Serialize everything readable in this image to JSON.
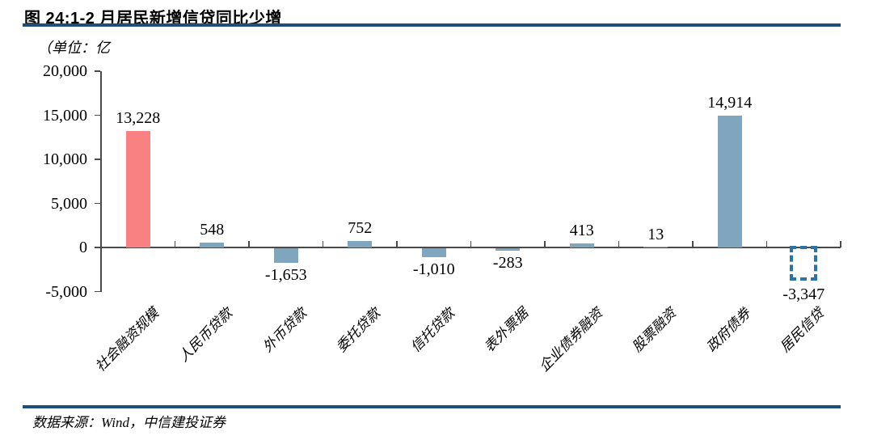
{
  "header": {
    "title": "图 24:1-2 月居民新增信贷同比少增"
  },
  "chart_data": {
    "type": "bar",
    "title": "图 24:1-2 月居民新增信贷同比少增",
    "unit_label": "（单位：亿",
    "categories": [
      "社会融资规模",
      "人民币贷款",
      "外币贷款",
      "委托贷款",
      "信托贷款",
      "表外票据",
      "企业债券融资",
      "股票融资",
      "政府债券",
      "居民信贷"
    ],
    "values": [
      13228,
      548,
      -1653,
      752,
      -1010,
      -283,
      413,
      13,
      14914,
      -3347
    ],
    "value_labels": [
      "13,228",
      "548",
      "-1,653",
      "752",
      "-1,010",
      "-283",
      "413",
      "13",
      "14,914",
      "-3,347"
    ],
    "bar_styles": [
      "red",
      "blue",
      "blue",
      "blue",
      "blue",
      "blue",
      "blue",
      "blue",
      "blue",
      "dashed"
    ],
    "ylim": [
      -5000,
      20000
    ],
    "ytick_values": [
      20000,
      15000,
      10000,
      5000,
      0,
      -5000
    ],
    "ytick_labels": [
      "20,000",
      "15,000",
      "10,000",
      "5,000",
      "0",
      "-5,000"
    ],
    "xlabel": "",
    "ylabel": "",
    "grid": false,
    "legend": "none"
  },
  "footer": {
    "source": "数据来源：Wind，中信建投证券"
  },
  "colors": {
    "red_bar": "#FA8181",
    "blue_bar": "#7FA6BE",
    "dashed_box": "#2B74A4",
    "rule": "#1F4E79",
    "axis_line": "#4a4a4a",
    "text": "#000000"
  }
}
